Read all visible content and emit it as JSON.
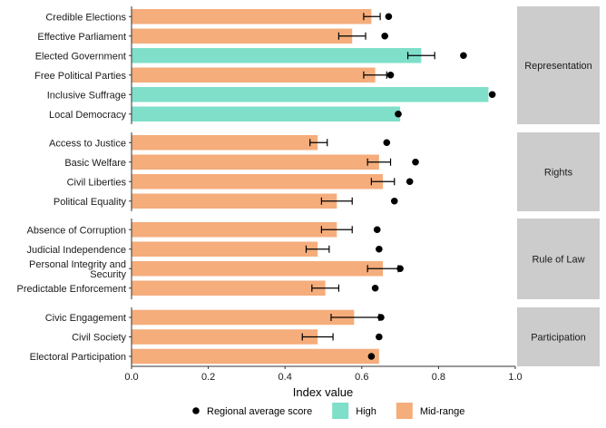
{
  "chart_data": {
    "type": "bar",
    "orientation": "horizontal",
    "xlabel": "Index value",
    "xlim": [
      0,
      1
    ],
    "xticks": [
      "0.0",
      "0.2",
      "0.4",
      "0.6",
      "0.8",
      "1.0"
    ],
    "colors": {
      "High": "#7fdfc9",
      "Mid-range": "#f5ad7c",
      "point": "#000000",
      "strip": "#cccccc"
    },
    "legend": {
      "position": "bottom",
      "items": [
        {
          "label": "Regional average score",
          "kind": "point"
        },
        {
          "label": "High",
          "kind": "fill",
          "key": "High"
        },
        {
          "label": "Mid-range",
          "kind": "fill",
          "key": "Mid-range"
        }
      ]
    },
    "panels": [
      {
        "name": "Representation",
        "rows": [
          {
            "label": "Credible Elections",
            "value": 0.625,
            "category": "Mid-range",
            "err": [
              0.605,
              0.648
            ],
            "avg": 0.67
          },
          {
            "label": "Effective Parliament",
            "value": 0.575,
            "category": "Mid-range",
            "err": [
              0.54,
              0.61
            ],
            "avg": 0.66
          },
          {
            "label": "Elected Government",
            "value": 0.755,
            "category": "High",
            "err": [
              0.72,
              0.79
            ],
            "avg": 0.865
          },
          {
            "label": "Free Political Parties",
            "value": 0.635,
            "category": "Mid-range",
            "err": [
              0.605,
              0.665
            ],
            "avg": 0.675
          },
          {
            "label": "Inclusive Suffrage",
            "value": 0.93,
            "category": "High",
            "err": null,
            "avg": 0.94
          },
          {
            "label": "Local Democracy",
            "value": 0.7,
            "category": "High",
            "err": null,
            "avg": 0.695
          }
        ]
      },
      {
        "name": "Rights",
        "rows": [
          {
            "label": "Access to Justice",
            "value": 0.485,
            "category": "Mid-range",
            "err": [
              0.465,
              0.51
            ],
            "avg": 0.665
          },
          {
            "label": "Basic Welfare",
            "value": 0.645,
            "category": "Mid-range",
            "err": [
              0.615,
              0.675
            ],
            "avg": 0.74
          },
          {
            "label": "Civil Liberties",
            "value": 0.655,
            "category": "Mid-range",
            "err": [
              0.625,
              0.685
            ],
            "avg": 0.725
          },
          {
            "label": "Political Equality",
            "value": 0.535,
            "category": "Mid-range",
            "err": [
              0.495,
              0.575
            ],
            "avg": 0.685
          }
        ]
      },
      {
        "name": "Rule of Law",
        "rows": [
          {
            "label": "Absence of Corruption",
            "value": 0.535,
            "category": "Mid-range",
            "err": [
              0.495,
              0.575
            ],
            "avg": 0.64
          },
          {
            "label": "Judicial Independence",
            "value": 0.485,
            "category": "Mid-range",
            "err": [
              0.455,
              0.515
            ],
            "avg": 0.645
          },
          {
            "label": [
              "Personal Integrity and",
              "Security"
            ],
            "value": 0.655,
            "category": "Mid-range",
            "err": [
              0.615,
              0.695
            ],
            "avg": 0.7
          },
          {
            "label": "Predictable Enforcement",
            "value": 0.505,
            "category": "Mid-range",
            "err": [
              0.47,
              0.54
            ],
            "avg": 0.635
          }
        ]
      },
      {
        "name": "Participation",
        "rows": [
          {
            "label": "Civic Engagement",
            "value": 0.58,
            "category": "Mid-range",
            "err": [
              0.52,
              0.645
            ],
            "avg": 0.65
          },
          {
            "label": "Civil Society",
            "value": 0.485,
            "category": "Mid-range",
            "err": [
              0.445,
              0.525
            ],
            "avg": 0.645
          },
          {
            "label": "Electoral Participation",
            "value": 0.645,
            "category": "Mid-range",
            "err": null,
            "avg": 0.625
          }
        ]
      }
    ]
  }
}
